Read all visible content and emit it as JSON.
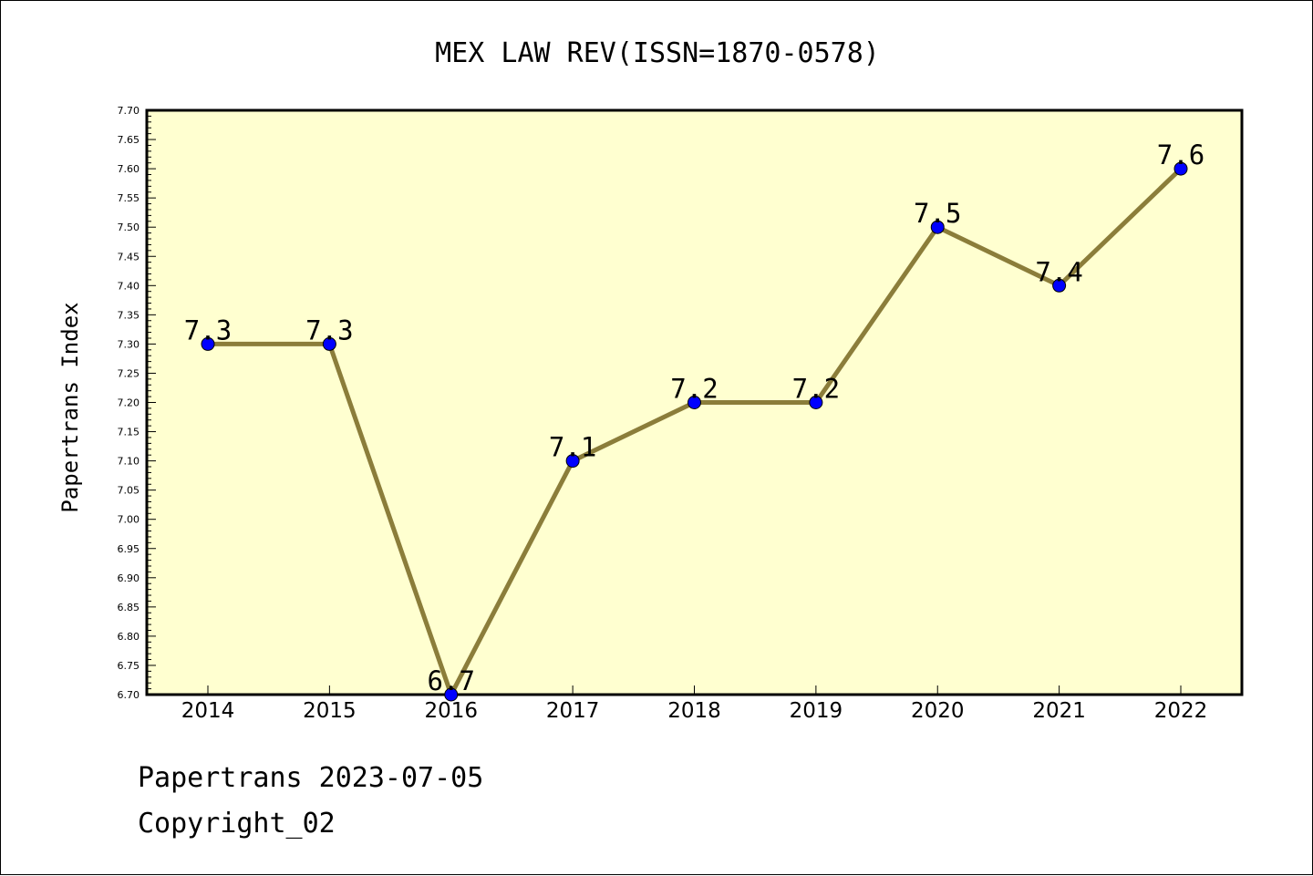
{
  "chart_data": {
    "type": "line",
    "title": "MEX LAW REV(ISSN=1870-0578)",
    "xlabel": "",
    "ylabel": "Papertrans Index",
    "categories": [
      "2014",
      "2015",
      "2016",
      "2017",
      "2018",
      "2019",
      "2020",
      "2021",
      "2022"
    ],
    "values": [
      7.3,
      7.3,
      6.7,
      7.1,
      7.2,
      7.2,
      7.5,
      7.4,
      7.6
    ],
    "data_labels": [
      "7.3",
      "7.3",
      "6.7",
      "7.1",
      "7.2",
      "7.2",
      "7.5",
      "7.4",
      "7.6"
    ],
    "ylim": [
      6.7,
      7.7
    ],
    "y_ticks": [
      "6.70",
      "6.75",
      "6.80",
      "6.85",
      "6.90",
      "6.95",
      "7.00",
      "7.05",
      "7.10",
      "7.15",
      "7.20",
      "7.25",
      "7.30",
      "7.35",
      "7.40",
      "7.45",
      "7.50",
      "7.55",
      "7.60",
      "7.65",
      "7.70"
    ],
    "grid": false,
    "legend": "none",
    "colors": {
      "plot_background": "#ffffd0",
      "line": "#8b7d3a",
      "marker": "#0000ff"
    }
  },
  "footer": {
    "line1": "Papertrans 2023-07-05",
    "line2": "Copyright_02"
  }
}
